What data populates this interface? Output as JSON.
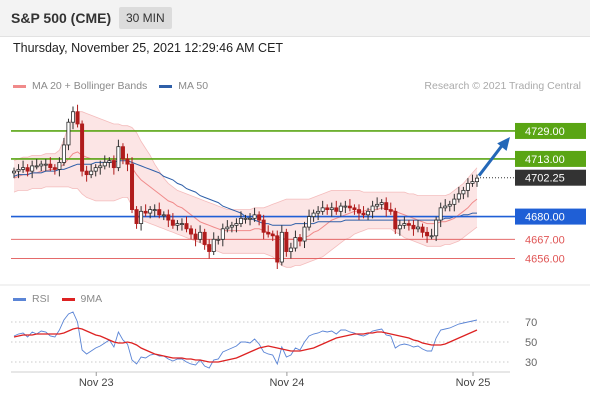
{
  "header": {
    "title": "S&P 500 (CME)",
    "timeframe": "30 MIN"
  },
  "datetime": "Thursday, November 25, 2021 12:29:46 AM CET",
  "legend": {
    "items": [
      {
        "label": "MA 20 + Bollinger Bands",
        "color": "#f08a8a"
      },
      {
        "label": "MA 50",
        "color": "#2f5fa8"
      }
    ],
    "copyright": "Research © 2021 Trading Central"
  },
  "rsi_legend": {
    "items": [
      {
        "label": "RSI",
        "color": "#5b85d6"
      },
      {
        "label": "9MA",
        "color": "#dd2222"
      }
    ]
  },
  "chart_data": [
    {
      "type": "candlestick",
      "y_range": [
        4646,
        4749
      ],
      "x_labels": [
        "Nov 23",
        "Nov 24",
        "Nov 25"
      ],
      "current_price": {
        "label": "4702.25",
        "value": 4702.25
      },
      "levels": [
        {
          "label": "4729.00",
          "value": 4729,
          "kind": "resistance",
          "color": "#5aa514"
        },
        {
          "label": "4713.00",
          "value": 4713,
          "kind": "resistance",
          "color": "#5aa514"
        },
        {
          "label": "4680.00",
          "value": 4680,
          "kind": "pivot",
          "color": "#1f5fd6"
        },
        {
          "label": "4667.00",
          "value": 4667,
          "kind": "support",
          "color": "#e05555"
        },
        {
          "label": "4656.00",
          "value": 4656,
          "kind": "support",
          "color": "#e05555"
        }
      ],
      "forecast_arrow": {
        "from": 4702.25,
        "to": 4729,
        "direction": "up",
        "color": "#2468b8"
      },
      "close_series": [
        4706,
        4707,
        4708,
        4706,
        4709,
        4709,
        4710,
        4710,
        4708,
        4707,
        4711,
        4721,
        4734,
        4740,
        4733,
        4706,
        4704,
        4706,
        4708,
        4709,
        4711,
        4712,
        4708,
        4720,
        4713,
        4710,
        4684,
        4676,
        4683,
        4682,
        4684,
        4684,
        4681,
        4681,
        4678,
        4675,
        4676,
        4676,
        4673,
        4670,
        4667,
        4671,
        4664,
        4660,
        4667,
        4667,
        4673,
        4674,
        4675,
        4676,
        4679,
        4679,
        4679,
        4681,
        4678,
        4671,
        4670,
        4669,
        4654,
        4671,
        4660,
        4662,
        4668,
        4666,
        4674,
        4680,
        4682,
        4683,
        4685,
        4684,
        4685,
        4683,
        4686,
        4686,
        4685,
        4684,
        4682,
        4681,
        4683,
        4686,
        4687,
        4688,
        4684,
        4683,
        4673,
        4675,
        4676,
        4675,
        4673,
        4674,
        4671,
        4669,
        4669,
        4678,
        4685,
        4686,
        4687,
        4690,
        4693,
        4695,
        4699,
        4700,
        4702
      ],
      "ma20": [
        4702,
        4703,
        4704,
        4704,
        4705,
        4705,
        4706,
        4706,
        4707,
        4707,
        4708,
        4710,
        4713,
        4716,
        4717,
        4715,
        4714,
        4713,
        4713,
        4713,
        4713,
        4713,
        4712,
        4713,
        4713,
        4712,
        4708,
        4704,
        4701,
        4699,
        4697,
        4695,
        4693,
        4691,
        4689,
        4688,
        4686,
        4685,
        4683,
        4681,
        4679,
        4677,
        4676,
        4675,
        4674,
        4673,
        4672,
        4672,
        4672,
        4672,
        4672,
        4672,
        4672,
        4673,
        4673,
        4672,
        4671,
        4670,
        4668,
        4668,
        4667,
        4667,
        4667,
        4667,
        4668,
        4669,
        4671,
        4672,
        4674,
        4676,
        4678,
        4679,
        4680,
        4681,
        4682,
        4683,
        4683,
        4683,
        4684,
        4684,
        4684,
        4685,
        4684,
        4684,
        4683,
        4682,
        4681,
        4680,
        4679,
        4678,
        4677,
        4676,
        4676,
        4676,
        4677,
        4677,
        4678,
        4679,
        4681,
        4683,
        4685,
        4688,
        4690
      ],
      "bb_upper": [
        4712,
        4713,
        4714,
        4714,
        4715,
        4715,
        4715,
        4716,
        4716,
        4716,
        4718,
        4724,
        4732,
        4738,
        4740,
        4740,
        4739,
        4738,
        4737,
        4736,
        4735,
        4734,
        4733,
        4733,
        4732,
        4732,
        4731,
        4728,
        4723,
        4719,
        4715,
        4710,
        4706,
        4702,
        4699,
        4697,
        4695,
        4694,
        4693,
        4692,
        4691,
        4690,
        4689,
        4688,
        4687,
        4686,
        4685,
        4684,
        4684,
        4684,
        4684,
        4684,
        4684,
        4685,
        4685,
        4685,
        4686,
        4687,
        4688,
        4689,
        4690,
        4690,
        4690,
        4690,
        4690,
        4690,
        4691,
        4692,
        4693,
        4694,
        4695,
        4695,
        4695,
        4695,
        4695,
        4695,
        4695,
        4694,
        4694,
        4694,
        4694,
        4694,
        4694,
        4694,
        4694,
        4694,
        4694,
        4693,
        4693,
        4692,
        4692,
        4692,
        4692,
        4692,
        4692,
        4692,
        4693,
        4695,
        4697,
        4699,
        4702,
        4705,
        4708
      ],
      "bb_lower": [
        4694,
        4695,
        4695,
        4695,
        4696,
        4696,
        4696,
        4697,
        4697,
        4697,
        4697,
        4697,
        4697,
        4696,
        4696,
        4693,
        4691,
        4690,
        4689,
        4689,
        4689,
        4689,
        4689,
        4690,
        4691,
        4691,
        4686,
        4681,
        4678,
        4677,
        4676,
        4675,
        4674,
        4673,
        4672,
        4671,
        4670,
        4669,
        4668,
        4667,
        4666,
        4665,
        4664,
        4662,
        4661,
        4660,
        4659,
        4659,
        4659,
        4659,
        4659,
        4659,
        4659,
        4659,
        4659,
        4659,
        4658,
        4657,
        4654,
        4652,
        4651,
        4651,
        4652,
        4652,
        4653,
        4654,
        4655,
        4656,
        4657,
        4659,
        4661,
        4663,
        4665,
        4667,
        4668,
        4670,
        4671,
        4672,
        4673,
        4673,
        4673,
        4673,
        4673,
        4673,
        4671,
        4670,
        4668,
        4667,
        4666,
        4665,
        4664,
        4663,
        4663,
        4663,
        4663,
        4664,
        4664,
        4665,
        4666,
        4668,
        4670,
        4672,
        4674
      ],
      "ma50": [
        4703,
        4704,
        4704,
        4704,
        4705,
        4705,
        4705,
        4706,
        4706,
        4706,
        4707,
        4707,
        4708,
        4709,
        4710,
        4710,
        4710,
        4710,
        4711,
        4711,
        4711,
        4711,
        4711,
        4712,
        4712,
        4712,
        4711,
        4710,
        4709,
        4708,
        4707,
        4706,
        4705,
        4703,
        4702,
        4701,
        4699,
        4698,
        4696,
        4695,
        4694,
        4692,
        4691,
        4690,
        4689,
        4688,
        4686,
        4685,
        4684,
        4683,
        4682,
        4680,
        4679,
        4678,
        4677,
        4676,
        4676,
        4675,
        4675,
        4675,
        4675,
        4675,
        4676,
        4676,
        4676,
        4676,
        4676,
        4677,
        4677,
        4677,
        4677,
        4677,
        4677,
        4678,
        4678,
        4678,
        4678,
        4678,
        4678,
        4678,
        4678,
        4678,
        4678,
        4678,
        4678,
        4678,
        4678,
        4678,
        4678,
        4678,
        4678,
        4678,
        4678,
        4678,
        4678,
        4679,
        4679,
        4680,
        4680,
        4681,
        4681,
        4682,
        4682
      ]
    },
    {
      "type": "line",
      "y_range": [
        20,
        80
      ],
      "y_ticks": [
        {
          "label": "70",
          "value": 70
        },
        {
          "label": "50",
          "value": 50
        },
        {
          "label": "30",
          "value": 30
        }
      ],
      "series": [
        {
          "name": "RSI",
          "color": "#5b85d6",
          "values": [
            56,
            58,
            59,
            55,
            60,
            58,
            61,
            60,
            56,
            55,
            62,
            72,
            78,
            80,
            70,
            42,
            38,
            41,
            44,
            46,
            49,
            52,
            45,
            60,
            52,
            48,
            32,
            28,
            35,
            34,
            37,
            38,
            36,
            36,
            33,
            31,
            33,
            33,
            30,
            28,
            27,
            32,
            26,
            24,
            32,
            33,
            40,
            42,
            44,
            46,
            50,
            50,
            49,
            53,
            48,
            40,
            38,
            37,
            28,
            45,
            35,
            37,
            44,
            42,
            50,
            56,
            58,
            59,
            61,
            60,
            61,
            58,
            62,
            62,
            60,
            59,
            57,
            56,
            58,
            61,
            62,
            63,
            57,
            56,
            44,
            47,
            48,
            47,
            45,
            46,
            43,
            41,
            41,
            54,
            62,
            63,
            64,
            66,
            68,
            69,
            70,
            71,
            72
          ]
        },
        {
          "name": "9MA",
          "color": "#dd2222",
          "values": [
            55,
            56,
            57,
            57,
            57,
            58,
            58,
            58,
            58,
            58,
            58,
            59,
            61,
            63,
            64,
            63,
            61,
            59,
            57,
            56,
            54,
            52,
            50,
            49,
            49,
            50,
            49,
            47,
            44,
            42,
            40,
            38,
            37,
            36,
            35,
            34,
            34,
            34,
            33,
            33,
            32,
            32,
            31,
            30,
            30,
            30,
            31,
            32,
            33,
            34,
            36,
            38,
            40,
            42,
            44,
            45,
            46,
            45,
            44,
            43,
            42,
            41,
            41,
            41,
            42,
            43,
            44,
            46,
            48,
            50,
            52,
            54,
            55,
            56,
            57,
            58,
            58,
            58,
            59,
            59,
            60,
            60,
            59,
            58,
            57,
            56,
            55,
            54,
            52,
            51,
            49,
            48,
            47,
            47,
            47,
            48,
            50,
            52,
            54,
            56,
            58,
            60,
            62
          ]
        }
      ]
    }
  ]
}
